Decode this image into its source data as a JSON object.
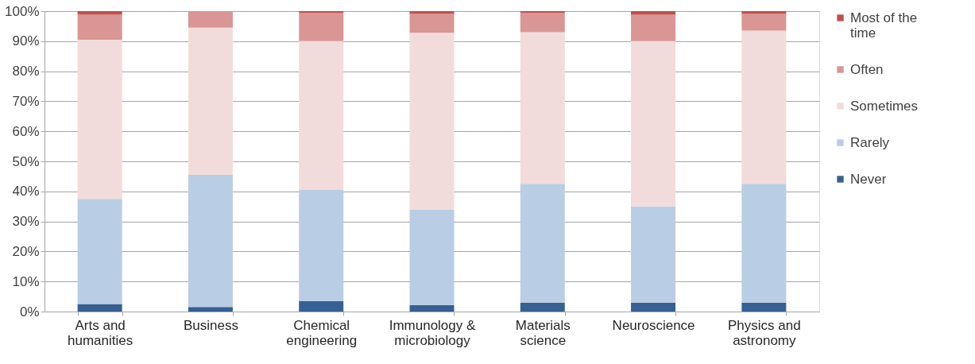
{
  "chart_data": {
    "type": "bar",
    "stacked": true,
    "categories": [
      "Arts and humanities",
      "Business",
      "Chemical engineering",
      "Immunology & microbiology",
      "Materials science",
      "Neuroscience",
      "Physics and astronomy"
    ],
    "series": [
      {
        "name": "Never",
        "color": "#376092",
        "values": [
          2.5,
          1.5,
          3.5,
          2.2,
          3,
          3,
          3
        ]
      },
      {
        "name": "Rarely",
        "color": "#b9cde5",
        "values": [
          35,
          44,
          37,
          31.8,
          39.5,
          32,
          39.5
        ]
      },
      {
        "name": "Sometimes",
        "color": "#f2dcdb",
        "values": [
          53,
          49,
          49.5,
          58.8,
          50.5,
          55,
          51
        ]
      },
      {
        "name": "Often",
        "color": "#d99694",
        "values": [
          8.3,
          5.5,
          9.5,
          6.3,
          6.5,
          8.8,
          5.6
        ]
      },
      {
        "name": "Most of the time",
        "color": "#c0504d",
        "values": [
          1.2,
          0,
          0.5,
          0.9,
          0.5,
          1.2,
          0.9
        ]
      }
    ],
    "ylim": [
      0,
      100
    ],
    "yticks": [
      {
        "value": 0,
        "label": "0%"
      },
      {
        "value": 10,
        "label": "10%"
      },
      {
        "value": 20,
        "label": "20%"
      },
      {
        "value": 30,
        "label": "30%"
      },
      {
        "value": 40,
        "label": "40%"
      },
      {
        "value": 50,
        "label": "50%"
      },
      {
        "value": 60,
        "label": "60%"
      },
      {
        "value": 70,
        "label": "70%"
      },
      {
        "value": 80,
        "label": "80%"
      },
      {
        "value": 90,
        "label": "90%"
      },
      {
        "value": 100,
        "label": "100%"
      }
    ],
    "grid": "y",
    "legend": "right"
  }
}
